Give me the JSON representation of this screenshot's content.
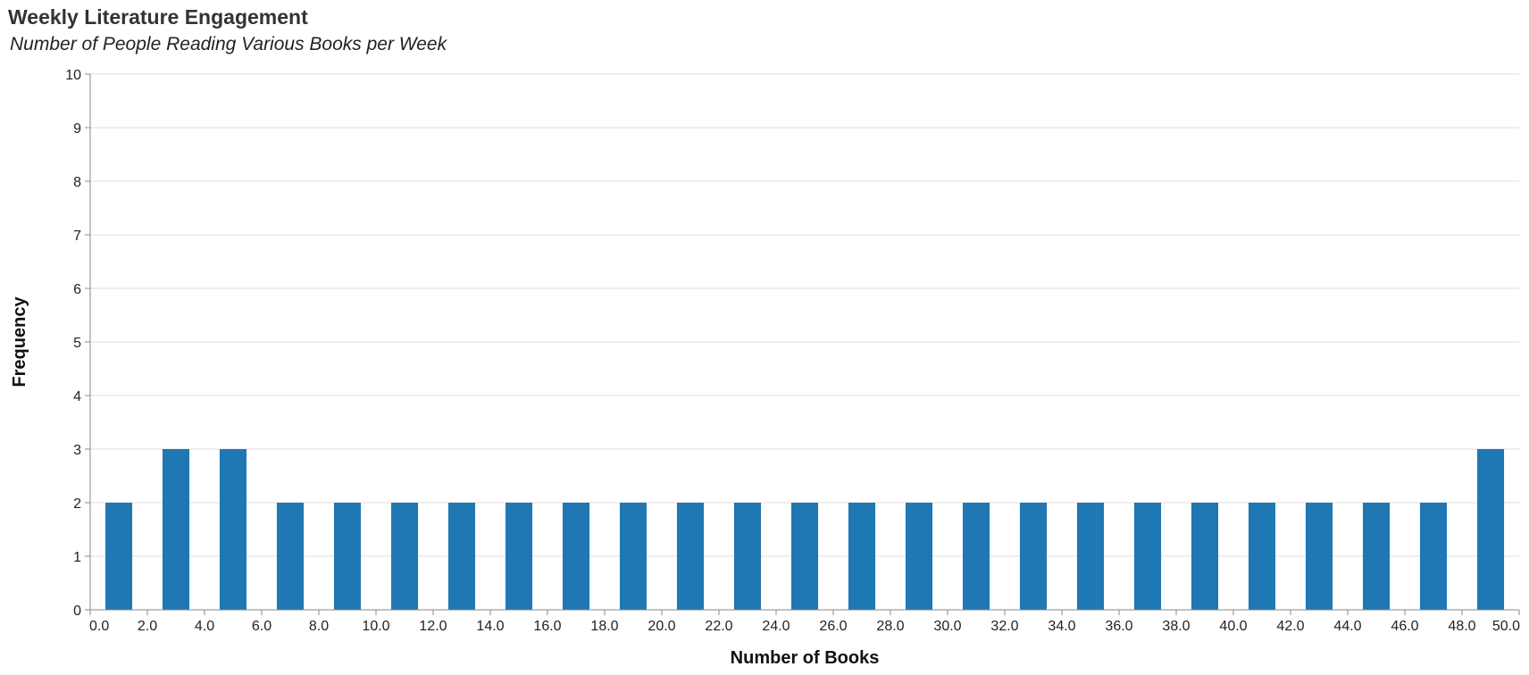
{
  "chart_data": {
    "type": "bar",
    "title": "Weekly Literature Engagement",
    "subtitle": "Number of People Reading Various Books per Week",
    "xlabel": "Number of Books",
    "ylabel": "Frequency",
    "xlim": [
      0,
      50
    ],
    "ylim": [
      0,
      10
    ],
    "x_ticks": [
      "0.0",
      "2.0",
      "4.0",
      "6.0",
      "8.0",
      "10.0",
      "12.0",
      "14.0",
      "16.0",
      "18.0",
      "20.0",
      "22.0",
      "24.0",
      "26.0",
      "28.0",
      "30.0",
      "32.0",
      "34.0",
      "36.0",
      "38.0",
      "40.0",
      "42.0",
      "44.0",
      "46.0",
      "48.0",
      "50.0"
    ],
    "y_ticks": [
      "0",
      "1",
      "2",
      "3",
      "4",
      "5",
      "6",
      "7",
      "8",
      "9",
      "10"
    ],
    "bins": [
      {
        "x0": 0,
        "x1": 2,
        "count": 2
      },
      {
        "x0": 2,
        "x1": 4,
        "count": 3
      },
      {
        "x0": 4,
        "x1": 6,
        "count": 3
      },
      {
        "x0": 6,
        "x1": 8,
        "count": 2
      },
      {
        "x0": 8,
        "x1": 10,
        "count": 2
      },
      {
        "x0": 10,
        "x1": 12,
        "count": 2
      },
      {
        "x0": 12,
        "x1": 14,
        "count": 2
      },
      {
        "x0": 14,
        "x1": 16,
        "count": 2
      },
      {
        "x0": 16,
        "x1": 18,
        "count": 2
      },
      {
        "x0": 18,
        "x1": 20,
        "count": 2
      },
      {
        "x0": 20,
        "x1": 22,
        "count": 2
      },
      {
        "x0": 22,
        "x1": 24,
        "count": 2
      },
      {
        "x0": 24,
        "x1": 26,
        "count": 2
      },
      {
        "x0": 26,
        "x1": 28,
        "count": 2
      },
      {
        "x0": 28,
        "x1": 30,
        "count": 2
      },
      {
        "x0": 30,
        "x1": 32,
        "count": 2
      },
      {
        "x0": 32,
        "x1": 34,
        "count": 2
      },
      {
        "x0": 34,
        "x1": 36,
        "count": 2
      },
      {
        "x0": 36,
        "x1": 38,
        "count": 2
      },
      {
        "x0": 38,
        "x1": 40,
        "count": 2
      },
      {
        "x0": 40,
        "x1": 42,
        "count": 2
      },
      {
        "x0": 42,
        "x1": 44,
        "count": 2
      },
      {
        "x0": 44,
        "x1": 46,
        "count": 2
      },
      {
        "x0": 46,
        "x1": 48,
        "count": 2
      },
      {
        "x0": 48,
        "x1": 50,
        "count": 3
      }
    ],
    "grid": true,
    "bar_color": "#1f77b4"
  }
}
